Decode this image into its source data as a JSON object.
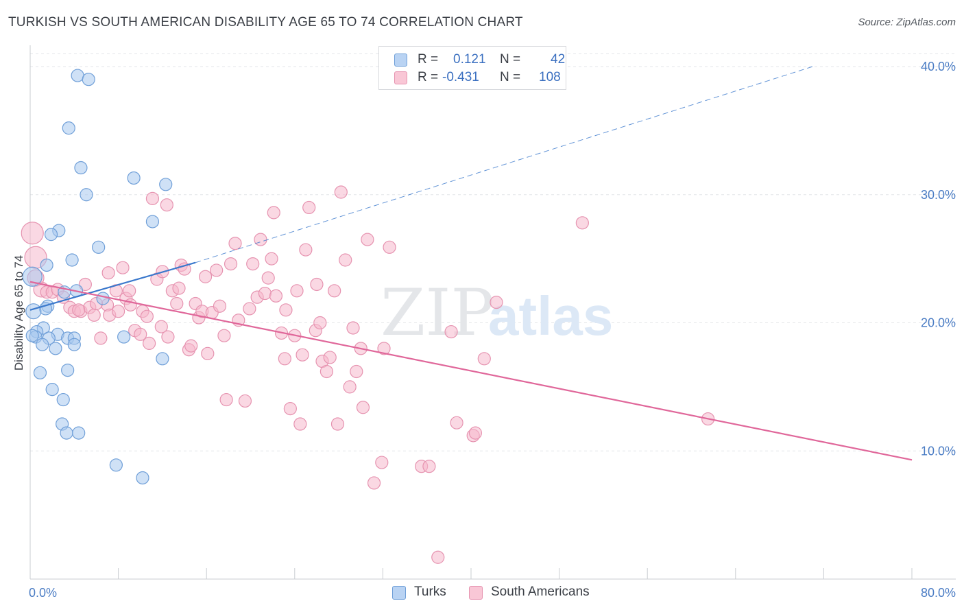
{
  "title": "TURKISH VS SOUTH AMERICAN DISABILITY AGE 65 TO 74 CORRELATION CHART",
  "source": "Source: ZipAtlas.com",
  "watermark": {
    "part1": "ZIP",
    "part2": "atlas"
  },
  "legend": {
    "r_label": "R =",
    "n_label": "N =",
    "turks": {
      "r": "0.121",
      "n": "42"
    },
    "south": {
      "r": "-0.431",
      "n": "108"
    }
  },
  "colors": {
    "turks_fill": "#a8c8ef",
    "turks_stroke": "#6f9fd8",
    "turks_line": "#3a78cc",
    "south_fill": "#f6b8cc",
    "south_stroke": "#e693b0",
    "south_line": "#e0679a",
    "grid": "#e3e5e8",
    "axis_text": "#4a7cc4"
  },
  "chart_data": {
    "type": "scatter",
    "title": "TURKISH VS SOUTH AMERICAN DISABILITY AGE 65 TO 74 CORRELATION CHART",
    "xlabel": "",
    "ylabel": "Disability Age 65 to 74",
    "xlim": [
      0,
      80
    ],
    "ylim": [
      0,
      40
    ],
    "x_tick_labels": {
      "min": "0.0%",
      "max": "80.0%"
    },
    "y_ticks": [
      {
        "value": 10,
        "label": "10.0%"
      },
      {
        "value": 20,
        "label": "20.0%"
      },
      {
        "value": 30,
        "label": "30.0%"
      },
      {
        "value": 40,
        "label": "40.0%"
      }
    ],
    "series": [
      {
        "name": "Turks",
        "r": 0.121,
        "n": 42,
        "trend": {
          "x0": 0,
          "y0": 21.0,
          "x1": 15,
          "y1": 24.7,
          "dashed_to_x": 71,
          "dashed_to_y": 40.0
        },
        "points": [
          [
            4.3,
            39.3,
            9
          ],
          [
            5.3,
            39.0,
            9
          ],
          [
            3.5,
            35.2,
            9
          ],
          [
            4.6,
            32.1,
            9
          ],
          [
            9.4,
            31.3,
            9
          ],
          [
            12.3,
            30.8,
            9
          ],
          [
            5.1,
            30.0,
            9
          ],
          [
            11.1,
            27.9,
            9
          ],
          [
            2.6,
            27.2,
            9
          ],
          [
            1.9,
            26.9,
            9
          ],
          [
            6.2,
            25.9,
            9
          ],
          [
            3.8,
            24.9,
            9
          ],
          [
            1.5,
            24.5,
            9
          ],
          [
            0.2,
            23.6,
            14
          ],
          [
            4.2,
            22.5,
            9
          ],
          [
            3.1,
            22.4,
            9
          ],
          [
            6.6,
            21.9,
            9
          ],
          [
            1.6,
            21.3,
            9
          ],
          [
            1.4,
            21.1,
            9
          ],
          [
            0.3,
            20.9,
            11
          ],
          [
            1.2,
            19.6,
            9
          ],
          [
            0.6,
            19.3,
            9
          ],
          [
            2.5,
            19.1,
            9
          ],
          [
            0.5,
            18.9,
            9
          ],
          [
            1.7,
            18.8,
            9
          ],
          [
            3.4,
            18.8,
            9
          ],
          [
            4.0,
            18.8,
            9
          ],
          [
            8.5,
            18.9,
            9
          ],
          [
            1.1,
            18.3,
            9
          ],
          [
            4.0,
            18.3,
            9
          ],
          [
            2.3,
            18.0,
            9
          ],
          [
            12.0,
            17.2,
            9
          ],
          [
            3.4,
            16.3,
            9
          ],
          [
            0.9,
            16.1,
            9
          ],
          [
            2.0,
            14.8,
            9
          ],
          [
            3.0,
            14.0,
            9
          ],
          [
            2.9,
            12.1,
            9
          ],
          [
            3.3,
            11.4,
            9
          ],
          [
            4.4,
            11.4,
            9
          ],
          [
            7.8,
            8.9,
            9
          ],
          [
            10.2,
            7.9,
            9
          ],
          [
            0.2,
            19.0,
            9
          ]
        ]
      },
      {
        "name": "South Americans",
        "r": -0.431,
        "n": 108,
        "trend": {
          "x0": 0,
          "y0": 23.2,
          "x1": 80,
          "y1": 9.3
        },
        "points": [
          [
            0.2,
            27.0,
            16
          ],
          [
            0.5,
            25.1,
            16
          ],
          [
            0.5,
            23.5,
            12
          ],
          [
            1.0,
            22.6,
            11
          ],
          [
            1.5,
            22.4,
            9
          ],
          [
            2.0,
            22.4,
            9
          ],
          [
            2.5,
            22.6,
            9
          ],
          [
            3.0,
            22.0,
            9
          ],
          [
            3.6,
            21.2,
            9
          ],
          [
            4.0,
            20.9,
            9
          ],
          [
            4.6,
            20.9,
            9
          ],
          [
            5.0,
            23.0,
            9
          ],
          [
            5.4,
            21.2,
            9
          ],
          [
            5.8,
            20.6,
            9
          ],
          [
            6.4,
            18.8,
            9
          ],
          [
            7.0,
            21.4,
            9
          ],
          [
            7.2,
            20.6,
            9
          ],
          [
            7.1,
            23.9,
            9
          ],
          [
            7.8,
            22.5,
            9
          ],
          [
            8.0,
            20.9,
            9
          ],
          [
            8.4,
            24.3,
            9
          ],
          [
            8.7,
            21.9,
            9
          ],
          [
            9.1,
            21.4,
            9
          ],
          [
            9.0,
            22.5,
            9
          ],
          [
            9.5,
            19.4,
            9
          ],
          [
            10.0,
            19.1,
            9
          ],
          [
            10.2,
            20.9,
            9
          ],
          [
            10.6,
            20.5,
            9
          ],
          [
            10.8,
            18.4,
            9
          ],
          [
            11.1,
            29.7,
            9
          ],
          [
            11.5,
            23.4,
            9
          ],
          [
            11.9,
            19.7,
            9
          ],
          [
            12.0,
            24.0,
            9
          ],
          [
            12.4,
            29.2,
            9
          ],
          [
            12.5,
            18.9,
            9
          ],
          [
            12.9,
            22.5,
            9
          ],
          [
            13.3,
            21.5,
            9
          ],
          [
            13.7,
            24.5,
            9
          ],
          [
            14.0,
            24.2,
            9
          ],
          [
            14.4,
            17.9,
            9
          ],
          [
            14.6,
            18.2,
            9
          ],
          [
            15.0,
            21.5,
            9
          ],
          [
            15.3,
            20.4,
            9
          ],
          [
            15.6,
            20.9,
            9
          ],
          [
            15.9,
            23.6,
            9
          ],
          [
            16.1,
            17.6,
            9
          ],
          [
            16.5,
            20.8,
            9
          ],
          [
            16.9,
            24.1,
            9
          ],
          [
            17.2,
            21.3,
            9
          ],
          [
            17.6,
            19.0,
            9
          ],
          [
            17.8,
            14.0,
            9
          ],
          [
            18.2,
            24.6,
            9
          ],
          [
            18.6,
            26.2,
            9
          ],
          [
            18.9,
            20.2,
            9
          ],
          [
            19.5,
            13.9,
            9
          ],
          [
            19.9,
            21.1,
            9
          ],
          [
            20.2,
            24.6,
            9
          ],
          [
            20.6,
            22.0,
            9
          ],
          [
            20.9,
            26.5,
            9
          ],
          [
            21.3,
            22.3,
            9
          ],
          [
            21.6,
            23.5,
            9
          ],
          [
            21.9,
            25.0,
            9
          ],
          [
            22.1,
            28.6,
            9
          ],
          [
            22.3,
            22.1,
            9
          ],
          [
            22.8,
            19.2,
            9
          ],
          [
            23.1,
            17.2,
            9
          ],
          [
            23.6,
            13.3,
            9
          ],
          [
            24.0,
            19.0,
            9
          ],
          [
            24.2,
            22.5,
            9
          ],
          [
            24.5,
            12.1,
            9
          ],
          [
            24.7,
            17.5,
            9
          ],
          [
            25.0,
            25.7,
            9
          ],
          [
            25.3,
            29.0,
            9
          ],
          [
            25.9,
            19.4,
            9
          ],
          [
            26.3,
            20.0,
            9
          ],
          [
            26.5,
            17.0,
            9
          ],
          [
            26.9,
            16.2,
            9
          ],
          [
            27.2,
            17.3,
            9
          ],
          [
            27.6,
            22.5,
            9
          ],
          [
            27.9,
            12.1,
            9
          ],
          [
            28.2,
            30.2,
            9
          ],
          [
            28.6,
            24.9,
            9
          ],
          [
            29.0,
            15.0,
            9
          ],
          [
            29.3,
            19.6,
            9
          ],
          [
            29.6,
            16.2,
            9
          ],
          [
            30.0,
            18.0,
            9
          ],
          [
            30.2,
            13.4,
            9
          ],
          [
            30.6,
            26.5,
            9
          ],
          [
            31.2,
            7.5,
            9
          ],
          [
            31.9,
            9.1,
            9
          ],
          [
            32.1,
            18.0,
            9
          ],
          [
            32.6,
            25.9,
            9
          ],
          [
            35.5,
            8.8,
            9
          ],
          [
            36.2,
            8.8,
            9
          ],
          [
            38.2,
            19.3,
            9
          ],
          [
            38.7,
            12.2,
            9
          ],
          [
            40.2,
            11.2,
            9
          ],
          [
            40.4,
            11.4,
            9
          ],
          [
            41.2,
            17.2,
            9
          ],
          [
            42.3,
            21.6,
            9
          ],
          [
            50.1,
            27.8,
            9
          ],
          [
            61.5,
            12.5,
            9
          ],
          [
            37.0,
            1.7,
            9
          ],
          [
            23.2,
            21.0,
            9
          ],
          [
            26.0,
            23.0,
            9
          ],
          [
            13.5,
            22.7,
            9
          ],
          [
            6.0,
            21.5,
            9
          ],
          [
            4.4,
            21.0,
            9
          ]
        ]
      }
    ]
  },
  "bottom_legend": {
    "turks": "Turks",
    "south": "South Americans"
  }
}
